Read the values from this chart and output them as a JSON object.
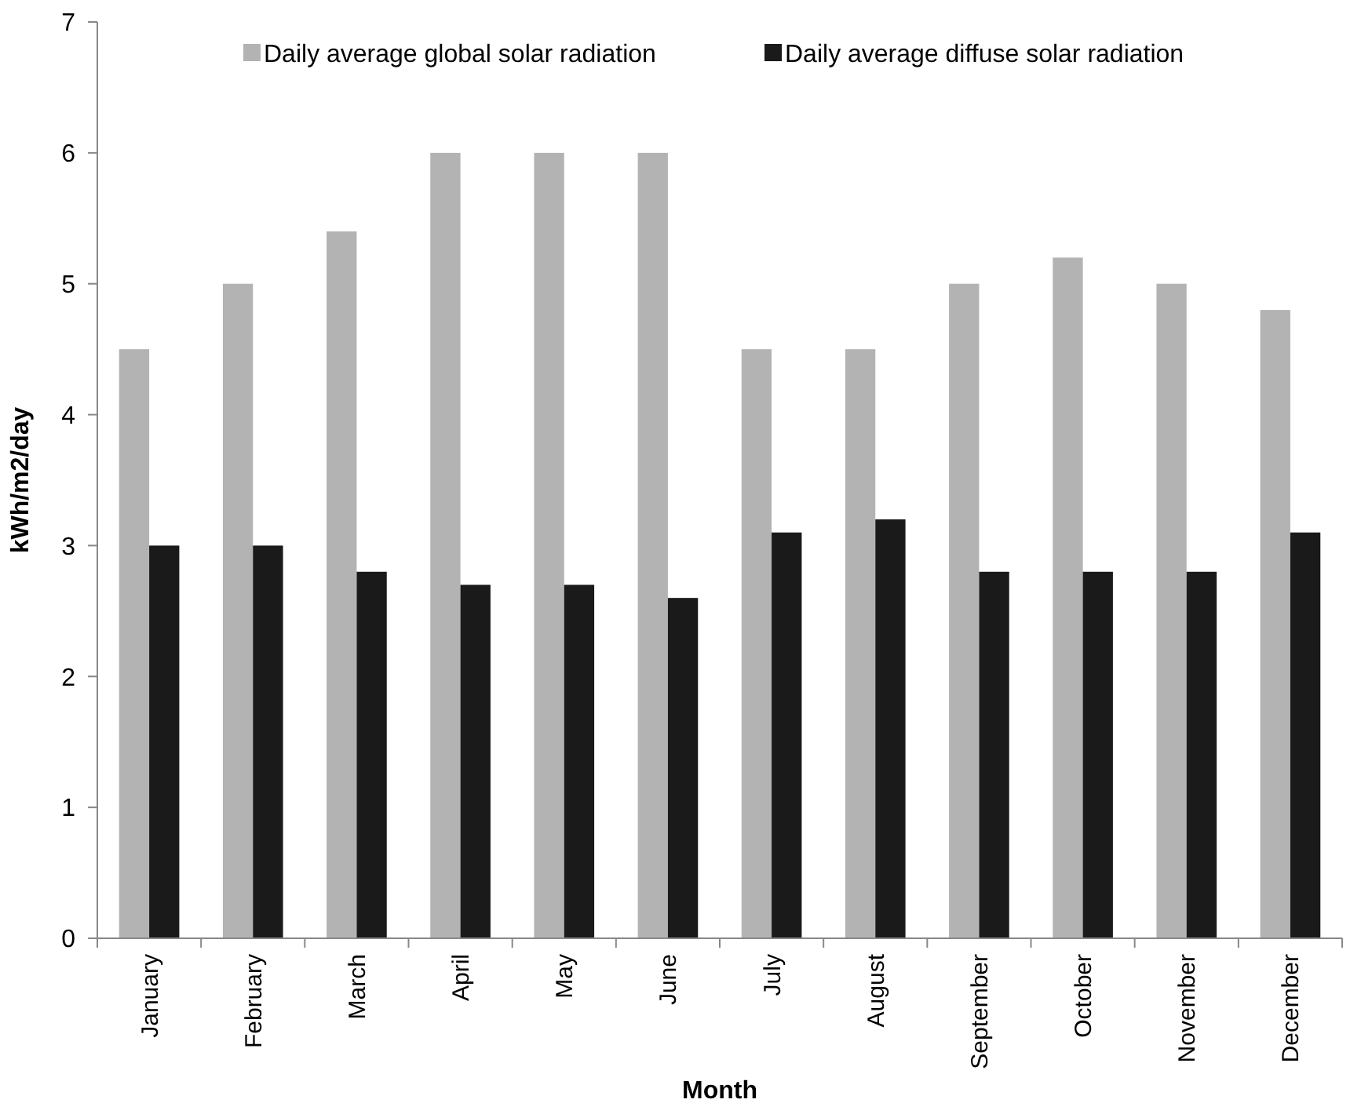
{
  "chart_data": {
    "type": "bar",
    "xlabel": "Month",
    "ylabel": "kWh/m2/day",
    "categories": [
      "January",
      "February",
      "March",
      "April",
      "May",
      "June",
      "July",
      "August",
      "September",
      "October",
      "November",
      "December"
    ],
    "series": [
      {
        "name": "Daily average global solar radiation",
        "color": "#b3b3b3",
        "values": [
          4.5,
          5,
          5.4,
          6,
          6,
          6,
          4.5,
          4.5,
          5,
          5.2,
          5,
          4.8
        ]
      },
      {
        "name": "Daily average diffuse solar radiation",
        "color": "#1a1a1a",
        "values": [
          3,
          3,
          2.8,
          2.7,
          2.7,
          2.6,
          3.1,
          3.2,
          2.8,
          2.8,
          2.8,
          3.1
        ]
      }
    ],
    "ylim": [
      0,
      7
    ],
    "yticks": [
      0,
      1,
      2,
      3,
      4,
      5,
      6,
      7
    ],
    "grid": false,
    "legend": "top"
  }
}
